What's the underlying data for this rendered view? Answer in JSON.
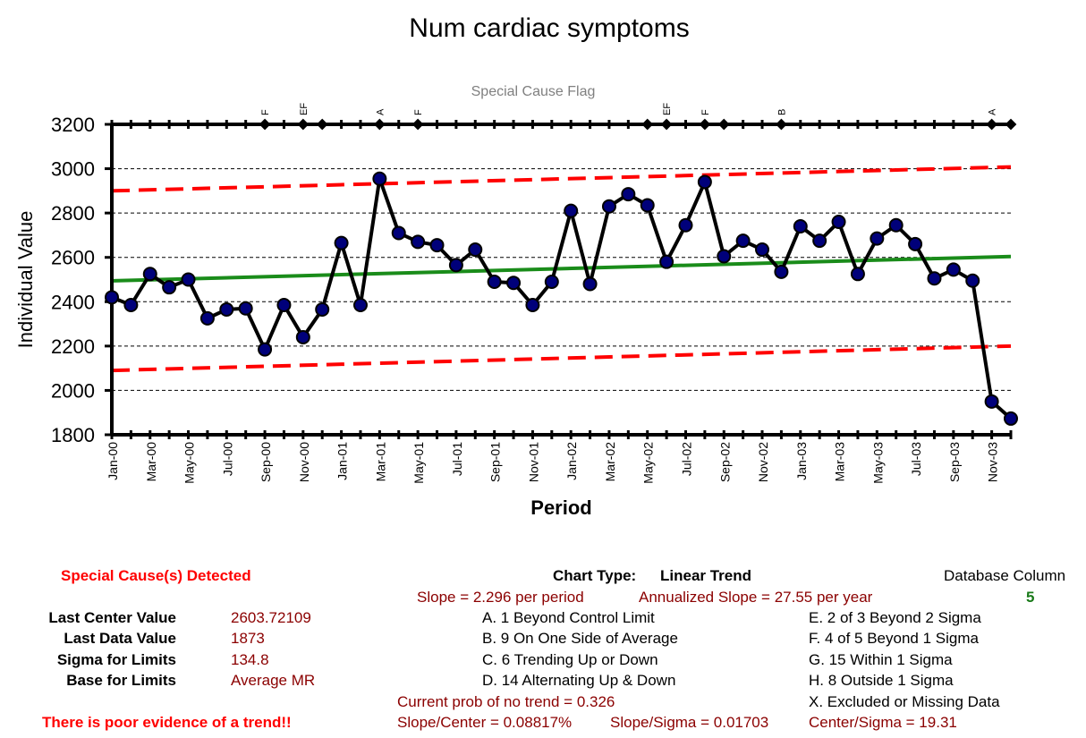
{
  "chart_data": {
    "type": "line",
    "title": "Num cardiac symptoms",
    "subtitle": "Special Cause Flag",
    "xlabel": "Period",
    "ylabel": "Individual Value",
    "ylim": [
      1800,
      3200
    ],
    "yticks": [
      1800,
      2000,
      2200,
      2400,
      2600,
      2800,
      3000,
      3200
    ],
    "grid": true,
    "x": [
      "Jan-00",
      "Feb-00",
      "Mar-00",
      "Apr-00",
      "May-00",
      "Jun-00",
      "Jul-00",
      "Aug-00",
      "Sep-00",
      "Oct-00",
      "Nov-00",
      "Dec-00",
      "Jan-01",
      "Feb-01",
      "Mar-01",
      "Apr-01",
      "May-01",
      "Jun-01",
      "Jul-01",
      "Aug-01",
      "Sep-01",
      "Oct-01",
      "Nov-01",
      "Dec-01",
      "Jan-02",
      "Feb-02",
      "Mar-02",
      "Apr-02",
      "May-02",
      "Jun-02",
      "Jul-02",
      "Aug-02",
      "Sep-02",
      "Oct-02",
      "Nov-02",
      "Dec-02",
      "Jan-03",
      "Feb-03",
      "Mar-03",
      "Apr-03",
      "May-03",
      "Jun-03",
      "Jul-03",
      "Aug-03",
      "Sep-03",
      "Oct-03",
      "Nov-03",
      "Dec-03"
    ],
    "xtick_labels": [
      "Jan-00",
      "Mar-00",
      "May-00",
      "Jul-00",
      "Sep-00",
      "Nov-00",
      "Jan-01",
      "Mar-01",
      "May-01",
      "Jul-01",
      "Sep-01",
      "Nov-01",
      "Jan-02",
      "Mar-02",
      "May-02",
      "Jul-02",
      "Sep-02",
      "Nov-02",
      "Jan-03",
      "Mar-03",
      "May-03",
      "Jul-03",
      "Sep-03",
      "Nov-03"
    ],
    "series": [
      {
        "role": "values",
        "color": "#000000",
        "marker_color": "#00007a",
        "values": [
          2420,
          2385,
          2525,
          2465,
          2500,
          2325,
          2365,
          2370,
          2185,
          2385,
          2240,
          2365,
          2665,
          2385,
          2955,
          2710,
          2670,
          2655,
          2565,
          2635,
          2490,
          2485,
          2385,
          2490,
          2810,
          2480,
          2830,
          2885,
          2835,
          2580,
          2745,
          2940,
          2605,
          2675,
          2635,
          2535,
          2740,
          2675,
          2760,
          2525,
          2685,
          2745,
          2660,
          2505,
          2545,
          2495,
          1950,
          1873
        ]
      },
      {
        "role": "center",
        "color": "#1a8c1a",
        "start": 2494,
        "end": 2604
      },
      {
        "role": "ucl",
        "color": "#ff0000",
        "start": 2900,
        "end": 3008
      },
      {
        "role": "lcl",
        "color": "#ff0000",
        "start": 2090,
        "end": 2200
      }
    ],
    "flags": [
      {
        "index": 8,
        "label": "F"
      },
      {
        "index": 10,
        "label": "EF"
      },
      {
        "index": 11,
        "label": ""
      },
      {
        "index": 14,
        "label": "A"
      },
      {
        "index": 16,
        "label": "F"
      },
      {
        "index": 28,
        "label": ""
      },
      {
        "index": 29,
        "label": "EF"
      },
      {
        "index": 31,
        "label": "F"
      },
      {
        "index": 32,
        "label": ""
      },
      {
        "index": 35,
        "label": "B"
      },
      {
        "index": 46,
        "label": "A"
      },
      {
        "index": 47,
        "label": ""
      }
    ]
  },
  "stats": {
    "special_cause_detected": "Special Cause(s) Detected",
    "last_center_label": "Last Center Value",
    "last_center_value": "2603.72109",
    "last_data_label": "Last Data Value",
    "last_data_value": "1873",
    "sigma_label": "Sigma for Limits",
    "sigma_value": "134.8",
    "base_label": "Base for Limits",
    "base_value": "Average MR",
    "trend_warning": "There is poor evidence of a trend!!"
  },
  "info": {
    "chart_type_label": "Chart Type:",
    "chart_type_value": "Linear Trend",
    "slope": "Slope = 2.296 per period",
    "annualized_slope": "Annualized Slope = 27.55 per year",
    "database_column_label": "Database Column",
    "database_column_value": "5",
    "rules_left": [
      "A.  1 Beyond Control Limit",
      "B.  9 On One Side of Average",
      "C.  6 Trending Up or Down",
      "D.  14 Alternating  Up & Down"
    ],
    "rules_right": [
      "E.  2 of 3 Beyond 2 Sigma",
      "F.  4 of 5 Beyond 1 Sigma",
      "G.  15 Within 1 Sigma",
      "H.  8 Outside 1 Sigma",
      "X.  Excluded or Missing Data"
    ],
    "prob_no_trend": "Current prob of no trend = 0.326",
    "slope_center": "Slope/Center = 0.08817%",
    "slope_sigma": "Slope/Sigma = 0.01703",
    "center_sigma": "Center/Sigma = 19.31"
  }
}
